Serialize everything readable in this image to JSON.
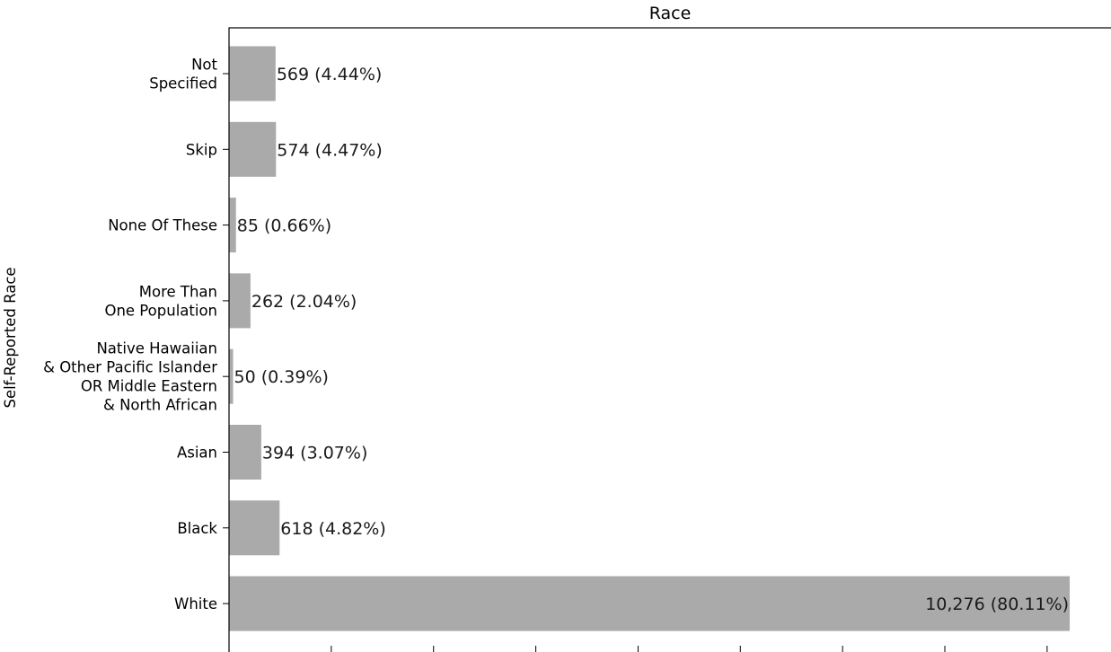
{
  "chart_data": {
    "type": "bar",
    "orientation": "horizontal",
    "title": "Race",
    "ylabel": "Self-Reported Race",
    "xlabel": "",
    "categories": [
      "Not\nSpecified",
      "Skip",
      "None Of These",
      "More Than\nOne Population",
      "Native Hawaiian\n& Other Pacific Islander\nOR Middle Eastern\n& North African",
      "Asian",
      "Black",
      "White"
    ],
    "values": [
      569,
      574,
      85,
      262,
      50,
      394,
      618,
      10276
    ],
    "value_labels": [
      "569 (4.44%)",
      "574 (4.47%)",
      "85 (0.66%)",
      "262 (2.04%)",
      "50 (0.39%)",
      "394 (3.07%)",
      "618 (4.82%)",
      "10,276 (80.11%)"
    ],
    "xlim": [
      0,
      10800
    ],
    "x_tick_values": [
      0,
      1250,
      2500,
      3750,
      5000,
      6250,
      7500,
      8750,
      10000
    ],
    "bar_color": "#aaaaaa",
    "grid": false
  }
}
